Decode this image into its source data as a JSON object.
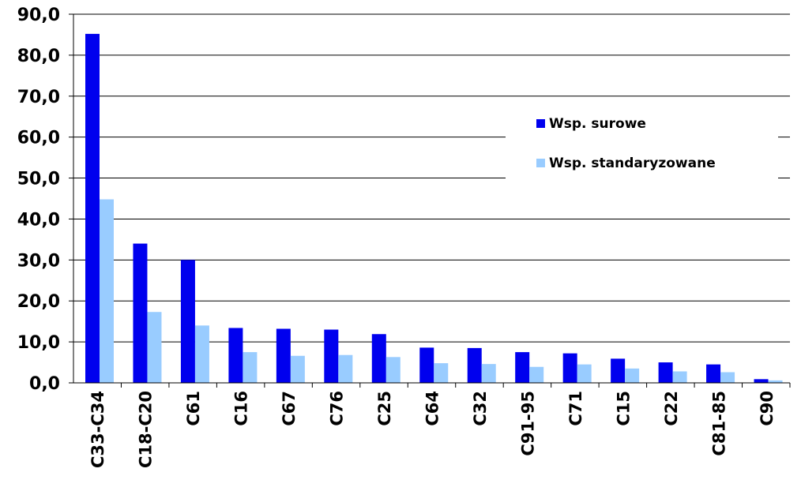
{
  "chart_data": {
    "type": "bar",
    "title": "",
    "xlabel": "",
    "ylabel": "",
    "ylim": [
      0,
      90
    ],
    "y_ticks": [
      "0,0",
      "10,0",
      "20,0",
      "30,0",
      "40,0",
      "50,0",
      "60,0",
      "70,0",
      "80,0",
      "90,0"
    ],
    "y_tick_values": [
      0,
      10,
      20,
      30,
      40,
      50,
      60,
      70,
      80,
      90
    ],
    "grid": true,
    "legend_position": "right",
    "categories": [
      "C33-C34",
      "C18-C20",
      "C61",
      "C16",
      "C67",
      "C76",
      "C25",
      "C64",
      "C32",
      "C91-95",
      "C71",
      "C15",
      "C22",
      "C81-85",
      "C90"
    ],
    "series": [
      {
        "name": "Wsp. surowe",
        "color": "#0000ee",
        "values": [
          85.2,
          34.0,
          30.0,
          13.4,
          13.2,
          13.0,
          11.9,
          8.6,
          8.5,
          7.5,
          7.2,
          5.9,
          5.0,
          4.5,
          0.9
        ]
      },
      {
        "name": "Wsp. standaryzowane",
        "color": "#99ccff",
        "values": [
          44.8,
          17.3,
          14.0,
          7.5,
          6.6,
          6.8,
          6.3,
          4.8,
          4.6,
          3.9,
          4.5,
          3.5,
          2.8,
          2.6,
          0.6
        ]
      }
    ]
  }
}
